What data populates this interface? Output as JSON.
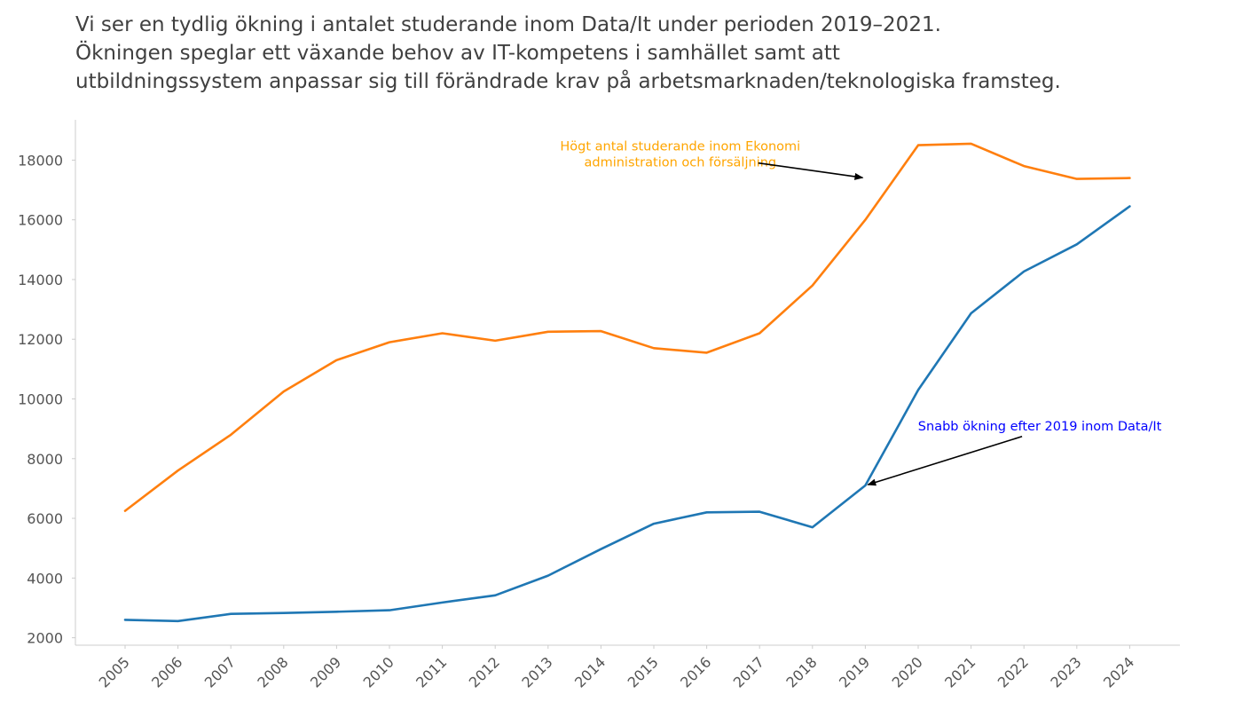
{
  "title_lines": [
    "Vi ser en tydlig ökning i antalet studerande inom Data/It under perioden 2019–2021.",
    "Ökningen speglar ett växande behov av IT-kompetens i samhället samt att",
    "utbildningssystem anpassar sig till förändrade krav på arbetsmarknaden/teknologiska framsteg."
  ],
  "chart_data": {
    "type": "line",
    "title": "Vi ser en tydlig ökning i antalet studerande inom Data/It under perioden 2019–2021. Ökningen speglar ett växande behov av IT-kompetens i samhället samt att utbildningssystem anpassar sig till förändrade krav på arbetsmarknaden/teknologiska framsteg.",
    "xlabel": "",
    "ylabel": "",
    "x": [
      "2005",
      "2006",
      "2007",
      "2008",
      "2009",
      "2010",
      "2011",
      "2012",
      "2013",
      "2014",
      "2015",
      "2016",
      "2017",
      "2018",
      "2019",
      "2020",
      "2021",
      "2022",
      "2023",
      "2024"
    ],
    "ylim": [
      1750,
      19350
    ],
    "yticks": [
      2000,
      4000,
      6000,
      8000,
      10000,
      12000,
      14000,
      16000,
      18000
    ],
    "grid": false,
    "legend": "none",
    "series": [
      {
        "color": "#ff7f0e",
        "values": [
          6250,
          7600,
          8800,
          10250,
          11300,
          11900,
          12200,
          11950,
          12250,
          12270,
          11700,
          11550,
          12200,
          13800,
          16000,
          18500,
          18550,
          17800,
          17370,
          17400
        ]
      },
      {
        "color": "#1f77b4",
        "values": [
          2600,
          2560,
          2800,
          2830,
          2870,
          2920,
          3180,
          3420,
          4080,
          4970,
          5820,
          6200,
          6220,
          5700,
          7100,
          10300,
          12870,
          14270,
          15180,
          16450
        ]
      }
    ],
    "annotations": [
      {
        "lines": [
          "Högt antal studerande inom Ekonomi",
          "administration och försäljning"
        ],
        "color": "#ffa500",
        "target": [
          "2019",
          17400
        ],
        "text_pos": [
          "2015.5",
          18200
        ]
      },
      {
        "lines": [
          "Snabb ökning efter 2019 inom Data/It"
        ],
        "color": "#0000ff",
        "target": [
          "2019",
          7100
        ],
        "text_pos": [
          "2022.3",
          9100
        ]
      }
    ]
  }
}
